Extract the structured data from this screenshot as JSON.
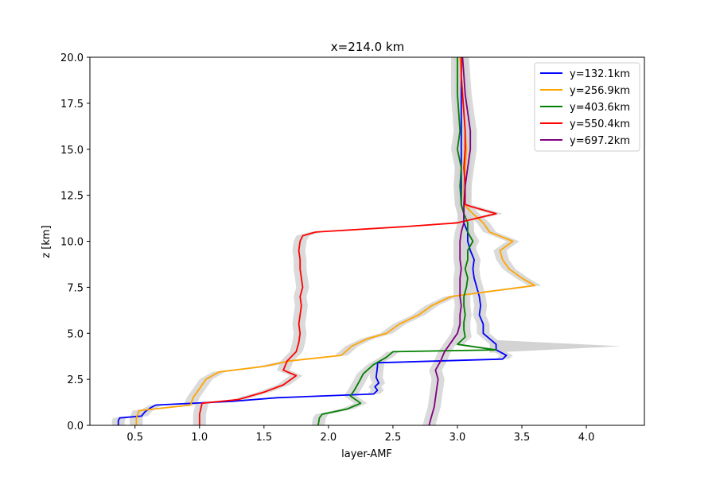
{
  "chart_data": {
    "type": "line",
    "title": "x=214.0 km",
    "xlabel": "layer-AMF",
    "ylabel": "z [km]",
    "xlim": [
      0.15,
      4.45
    ],
    "ylim": [
      0,
      20
    ],
    "xticks": [
      0.5,
      1.0,
      1.5,
      2.0,
      2.5,
      3.0,
      3.5,
      4.0
    ],
    "xtick_labels": [
      "0.5",
      "1.0",
      "1.5",
      "2.0",
      "2.5",
      "3.0",
      "3.5",
      "4.0"
    ],
    "yticks": [
      0,
      2.5,
      5,
      7.5,
      10,
      12.5,
      15,
      17.5,
      20
    ],
    "ytick_labels": [
      "0.0",
      "2.5",
      "5.0",
      "7.5",
      "10.0",
      "12.5",
      "15.0",
      "17.5",
      "20.0"
    ],
    "grid": false,
    "legend_position": "top-right",
    "uncertainty_band_color": "#d3d3d3",
    "series": [
      {
        "name": "y=132.1km",
        "color": "#0000ff",
        "spread": 0.05,
        "points": [
          [
            0.37,
            0
          ],
          [
            0.37,
            0.25
          ],
          [
            0.38,
            0.4
          ],
          [
            0.55,
            0.5
          ],
          [
            0.58,
            0.75
          ],
          [
            0.62,
            0.95
          ],
          [
            0.66,
            1.1
          ],
          [
            1.25,
            1.3
          ],
          [
            1.6,
            1.5
          ],
          [
            2.35,
            1.7
          ],
          [
            2.38,
            1.9
          ],
          [
            2.36,
            2.1
          ],
          [
            2.39,
            2.3
          ],
          [
            2.37,
            2.6
          ],
          [
            2.38,
            3.2
          ],
          [
            2.38,
            3.4
          ],
          [
            3.35,
            3.6
          ],
          [
            3.38,
            3.8
          ],
          [
            3.3,
            4.1
          ],
          [
            3.3,
            4.4
          ],
          [
            3.25,
            4.7
          ],
          [
            3.2,
            5.0
          ],
          [
            3.2,
            5.5
          ],
          [
            3.17,
            6.0
          ],
          [
            3.18,
            6.5
          ],
          [
            3.17,
            7.0
          ],
          [
            3.15,
            7.5
          ],
          [
            3.13,
            8.0
          ],
          [
            3.12,
            8.5
          ],
          [
            3.13,
            9.0
          ],
          [
            3.1,
            9.5
          ],
          [
            3.08,
            10.0
          ],
          [
            3.08,
            10.5
          ],
          [
            3.05,
            11.0
          ],
          [
            3.05,
            11.5
          ],
          [
            3.03,
            12.0
          ],
          [
            3.03,
            13.0
          ],
          [
            3.03,
            14.0
          ],
          [
            3.03,
            15.0
          ],
          [
            3.03,
            16.0
          ],
          [
            3.03,
            17.0
          ],
          [
            3.03,
            18.0
          ],
          [
            3.03,
            19.0
          ],
          [
            3.03,
            20.0
          ]
        ]
      },
      {
        "name": "y=256.9km",
        "color": "#ffa500",
        "spread": 0.05,
        "points": [
          [
            0.51,
            0
          ],
          [
            0.51,
            0.4
          ],
          [
            0.53,
            0.8
          ],
          [
            0.93,
            1.1
          ],
          [
            0.95,
            1.5
          ],
          [
            1.0,
            2.0
          ],
          [
            1.05,
            2.5
          ],
          [
            1.15,
            2.9
          ],
          [
            1.5,
            3.2
          ],
          [
            1.7,
            3.5
          ],
          [
            2.1,
            3.8
          ],
          [
            2.18,
            4.3
          ],
          [
            2.3,
            4.7
          ],
          [
            2.45,
            5.0
          ],
          [
            2.55,
            5.5
          ],
          [
            2.7,
            6.0
          ],
          [
            2.8,
            6.5
          ],
          [
            2.95,
            7.0
          ],
          [
            3.6,
            7.6
          ],
          [
            3.5,
            8.0
          ],
          [
            3.4,
            8.5
          ],
          [
            3.35,
            9.0
          ],
          [
            3.33,
            9.5
          ],
          [
            3.43,
            10.0
          ],
          [
            3.25,
            10.5
          ],
          [
            3.2,
            11.0
          ],
          [
            3.12,
            11.5
          ],
          [
            3.05,
            12.0
          ],
          [
            3.05,
            13.0
          ],
          [
            3.06,
            14.0
          ],
          [
            3.07,
            15.0
          ],
          [
            3.06,
            16.0
          ],
          [
            3.05,
            17.0
          ],
          [
            3.04,
            18.0
          ],
          [
            3.03,
            19.0
          ],
          [
            3.02,
            20.0
          ]
        ]
      },
      {
        "name": "y=403.6km",
        "color": "#008000",
        "spread": 0.05,
        "points": [
          [
            1.92,
            0
          ],
          [
            1.93,
            0.4
          ],
          [
            1.95,
            0.6
          ],
          [
            2.15,
            0.9
          ],
          [
            2.25,
            1.2
          ],
          [
            2.17,
            1.6
          ],
          [
            2.2,
            1.9
          ],
          [
            2.24,
            2.4
          ],
          [
            2.27,
            2.8
          ],
          [
            2.35,
            3.3
          ],
          [
            2.45,
            3.7
          ],
          [
            2.5,
            4.0
          ],
          [
            3.3,
            4.1
          ],
          [
            3.0,
            4.4
          ],
          [
            3.06,
            4.8
          ],
          [
            3.05,
            5.2
          ],
          [
            3.05,
            5.6
          ],
          [
            3.06,
            6.0
          ],
          [
            3.05,
            6.5
          ],
          [
            3.05,
            7.0
          ],
          [
            3.07,
            7.5
          ],
          [
            3.08,
            8.0
          ],
          [
            3.06,
            8.5
          ],
          [
            3.08,
            9.0
          ],
          [
            3.08,
            9.5
          ],
          [
            3.12,
            10.0
          ],
          [
            3.08,
            10.5
          ],
          [
            3.08,
            11.0
          ],
          [
            3.05,
            11.5
          ],
          [
            3.03,
            12.0
          ],
          [
            3.02,
            13.0
          ],
          [
            3.03,
            14.0
          ],
          [
            3.0,
            15.0
          ],
          [
            3.02,
            16.0
          ],
          [
            3.01,
            17.0
          ],
          [
            3.0,
            18.0
          ],
          [
            3.0,
            19.0
          ],
          [
            3.0,
            20.0
          ]
        ]
      },
      {
        "name": "y=550.4km",
        "color": "#ff0000",
        "spread": 0.05,
        "points": [
          [
            1.0,
            0
          ],
          [
            1.0,
            0.6
          ],
          [
            1.02,
            1.2
          ],
          [
            1.3,
            1.4
          ],
          [
            1.5,
            1.8
          ],
          [
            1.65,
            2.2
          ],
          [
            1.75,
            2.7
          ],
          [
            1.65,
            3.0
          ],
          [
            1.68,
            3.5
          ],
          [
            1.75,
            4.0
          ],
          [
            1.77,
            4.5
          ],
          [
            1.78,
            5.0
          ],
          [
            1.77,
            5.5
          ],
          [
            1.78,
            6.0
          ],
          [
            1.79,
            6.5
          ],
          [
            1.78,
            7.0
          ],
          [
            1.8,
            7.5
          ],
          [
            1.79,
            8.0
          ],
          [
            1.78,
            8.5
          ],
          [
            1.78,
            9.0
          ],
          [
            1.77,
            9.5
          ],
          [
            1.78,
            10.0
          ],
          [
            1.8,
            10.3
          ],
          [
            1.9,
            10.5
          ],
          [
            2.6,
            10.8
          ],
          [
            3.0,
            11.0
          ],
          [
            3.3,
            11.5
          ],
          [
            3.1,
            11.9
          ],
          [
            3.06,
            12.0
          ],
          [
            3.06,
            13.0
          ],
          [
            3.05,
            14.0
          ],
          [
            3.06,
            15.0
          ],
          [
            3.06,
            16.0
          ],
          [
            3.05,
            17.0
          ],
          [
            3.04,
            18.0
          ],
          [
            3.03,
            19.0
          ],
          [
            3.03,
            20.0
          ]
        ]
      },
      {
        "name": "y=697.2km",
        "color": "#800080",
        "spread": 0.05,
        "points": [
          [
            2.78,
            0
          ],
          [
            2.8,
            0.5
          ],
          [
            2.82,
            1.0
          ],
          [
            2.83,
            1.5
          ],
          [
            2.84,
            2.0
          ],
          [
            2.85,
            2.5
          ],
          [
            2.83,
            3.0
          ],
          [
            2.87,
            3.5
          ],
          [
            2.9,
            4.0
          ],
          [
            2.95,
            4.5
          ],
          [
            3.0,
            5.0
          ],
          [
            3.02,
            5.5
          ],
          [
            3.02,
            6.0
          ],
          [
            3.03,
            6.5
          ],
          [
            3.02,
            7.0
          ],
          [
            3.02,
            7.5
          ],
          [
            3.02,
            8.0
          ],
          [
            3.03,
            8.5
          ],
          [
            3.02,
            9.0
          ],
          [
            3.02,
            9.5
          ],
          [
            3.02,
            10.0
          ],
          [
            3.03,
            10.5
          ],
          [
            3.05,
            11.0
          ],
          [
            3.05,
            11.5
          ],
          [
            3.05,
            12.0
          ],
          [
            3.06,
            13.0
          ],
          [
            3.08,
            14.0
          ],
          [
            3.1,
            15.0
          ],
          [
            3.1,
            16.0
          ],
          [
            3.08,
            17.0
          ],
          [
            3.06,
            18.0
          ],
          [
            3.05,
            19.0
          ],
          [
            3.04,
            20.0
          ]
        ]
      }
    ],
    "annotations": [
      {
        "type": "uncertainty-spike",
        "x": 4.27,
        "y": 4.3
      }
    ]
  }
}
